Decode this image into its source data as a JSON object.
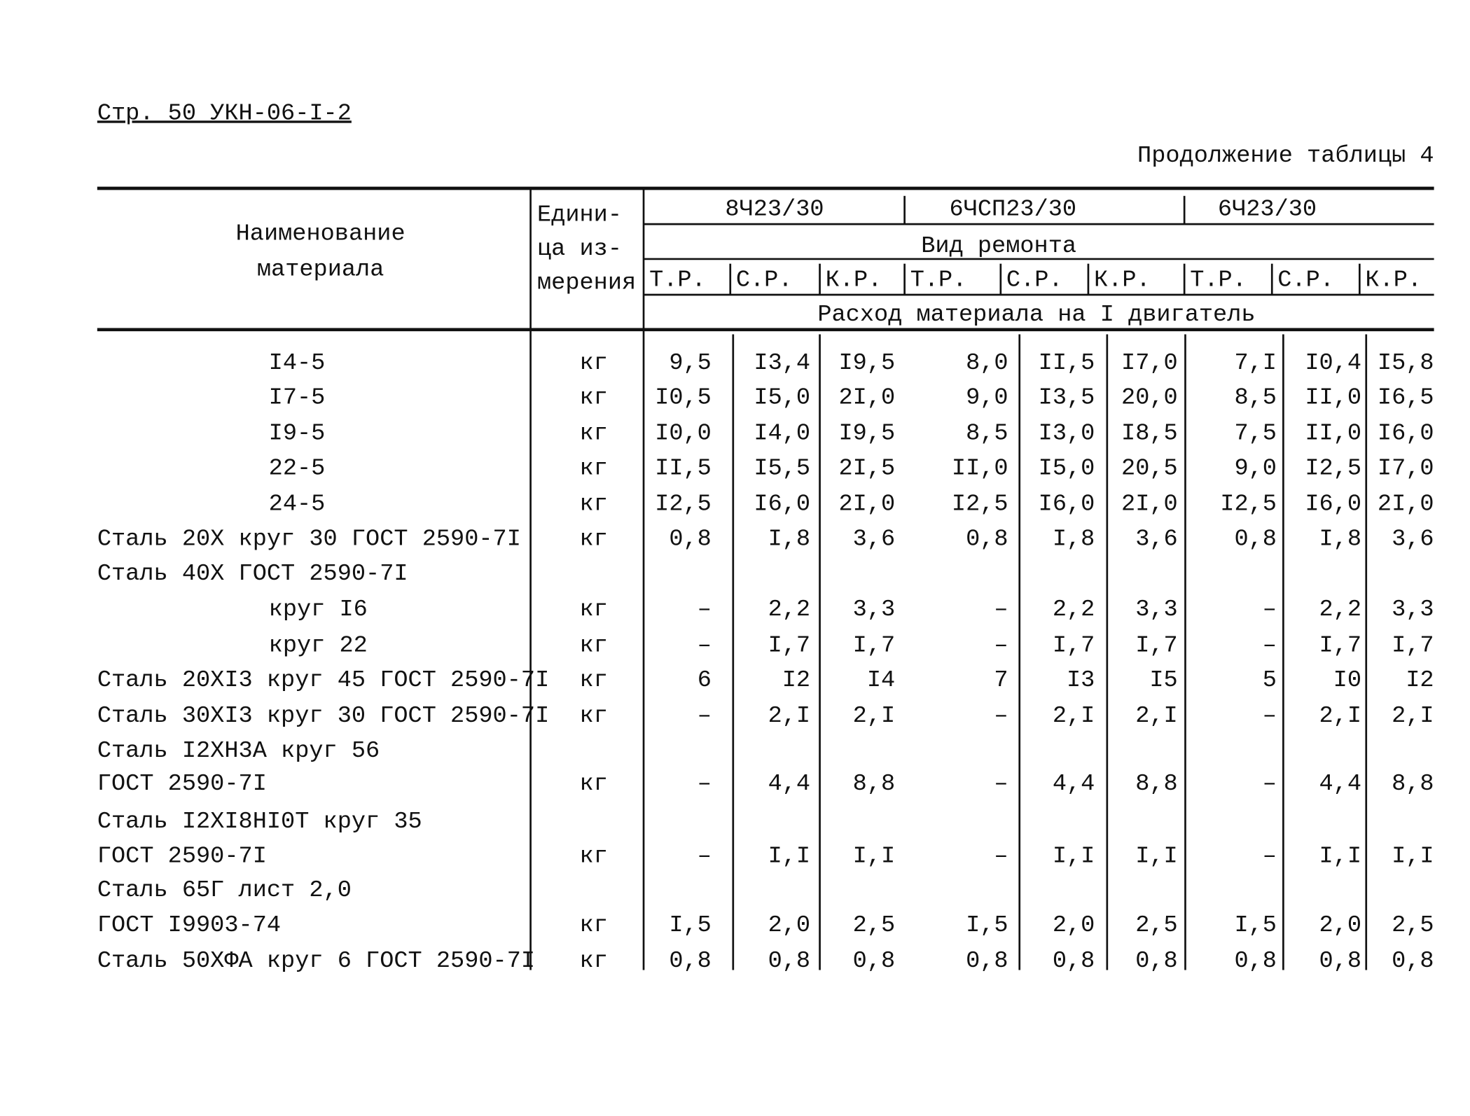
{
  "header": {
    "page_ref": "Стр. 50 УКН-06-I-2",
    "continuation": "Продолжение таблицы 4"
  },
  "table": {
    "head": {
      "name": [
        "Наименование",
        "материала"
      ],
      "unit": [
        "Едини-",
        "ца из-",
        "мерения"
      ],
      "engines": [
        "8Ч23/30",
        "6ЧСП23/30",
        "6Ч23/30"
      ],
      "repair_kind": "Вид ремонта",
      "repairs": [
        "Т.Р.",
        "С.Р.",
        "К.Р.",
        "Т.Р.",
        "С.Р.",
        "К.Р.",
        "Т.Р.",
        "С.Р.",
        "К.Р."
      ],
      "consumption": "Расход материала на I двигатель"
    },
    "rows": [
      {
        "name": "I4-5",
        "unit": "кг",
        "values": [
          "9,5",
          "I3,4",
          "I9,5",
          "8,0",
          "II,5",
          "I7,0",
          "7,I",
          "I0,4",
          "I5,8"
        ]
      },
      {
        "name": "I7-5",
        "unit": "кг",
        "values": [
          "I0,5",
          "I5,0",
          "2I,0",
          "9,0",
          "I3,5",
          "20,0",
          "8,5",
          "II,0",
          "I6,5"
        ]
      },
      {
        "name": "I9-5",
        "unit": "кг",
        "values": [
          "I0,0",
          "I4,0",
          "I9,5",
          "8,5",
          "I3,0",
          "I8,5",
          "7,5",
          "II,0",
          "I6,0"
        ]
      },
      {
        "name": "22-5",
        "unit": "кг",
        "values": [
          "II,5",
          "I5,5",
          "2I,5",
          "II,0",
          "I5,0",
          "20,5",
          "9,0",
          "I2,5",
          "I7,0"
        ]
      },
      {
        "name": "24-5",
        "unit": "кг",
        "values": [
          "I2,5",
          "I6,0",
          "2I,0",
          "I2,5",
          "I6,0",
          "2I,0",
          "I2,5",
          "I6,0",
          "2I,0"
        ]
      },
      {
        "name": "Сталь 20Х круг 30 ГОСТ 2590-7I",
        "unit": "кг",
        "values": [
          "0,8",
          "I,8",
          "3,6",
          "0,8",
          "I,8",
          "3,6",
          "0,8",
          "I,8",
          "3,6"
        ]
      },
      {
        "name": "Сталь 40Х ГОСТ 2590-7I"
      },
      {
        "name": "круг I6",
        "unit": "кг",
        "values": [
          "–",
          "2,2",
          "3,3",
          "–",
          "2,2",
          "3,3",
          "–",
          "2,2",
          "3,3"
        ]
      },
      {
        "name": "круг 22",
        "unit": "кг",
        "values": [
          "–",
          "I,7",
          "I,7",
          "–",
          "I,7",
          "I,7",
          "–",
          "I,7",
          "I,7"
        ]
      },
      {
        "name": "Сталь 20ХI3 круг 45 ГОСТ 2590-7I",
        "unit": "кг",
        "values": [
          "6",
          "I2",
          "I4",
          "7",
          "I3",
          "I5",
          "5",
          "I0",
          "I2"
        ]
      },
      {
        "name": "Сталь 30ХI3 круг 30 ГОСТ 2590-7I",
        "unit": "кг",
        "values": [
          "–",
          "2,I",
          "2,I",
          "–",
          "2,I",
          "2,I",
          "–",
          "2,I",
          "2,I"
        ]
      },
      {
        "name": "Сталь I2ХН3А круг 56"
      },
      {
        "name": "ГОСТ 2590-7I",
        "unit": "кг",
        "values": [
          "–",
          "4,4",
          "8,8",
          "–",
          "4,4",
          "8,8",
          "–",
          "4,4",
          "8,8"
        ]
      },
      {
        "name": "Сталь I2ХI8НI0Т круг 35"
      },
      {
        "name": "ГОСТ 2590-7I",
        "unit": "кг",
        "values": [
          "–",
          "I,I",
          "I,I",
          "–",
          "I,I",
          "I,I",
          "–",
          "I,I",
          "I,I"
        ]
      },
      {
        "name": "Сталь 65Г лист 2,0"
      },
      {
        "name": "ГОСТ I9903-74",
        "unit": "кг",
        "values": [
          "I,5",
          "2,0",
          "2,5",
          "I,5",
          "2,0",
          "2,5",
          "I,5",
          "2,0",
          "2,5"
        ]
      },
      {
        "name": "Сталь 50ХФА круг 6 ГОСТ 2590-7I",
        "unit": "кг",
        "values": [
          "0,8",
          "0,8",
          "0,8",
          "0,8",
          "0,8",
          "0,8",
          "0,8",
          "0,8",
          "0,8"
        ]
      }
    ]
  }
}
